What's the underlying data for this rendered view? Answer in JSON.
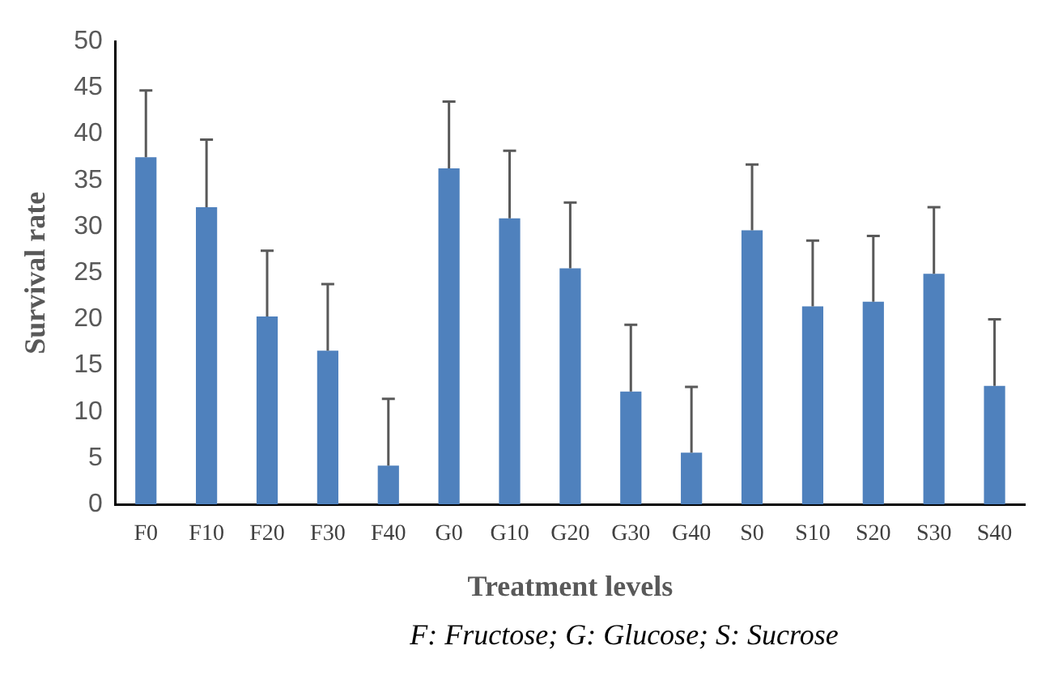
{
  "chart_data": {
    "type": "bar",
    "xlabel": "Treatment levels",
    "ylabel": "Survival rate",
    "categories": [
      "F0",
      "F10",
      "F20",
      "F30",
      "F40",
      "G0",
      "G10",
      "G20",
      "G30",
      "G40",
      "S0",
      "S10",
      "S20",
      "S30",
      "S40"
    ],
    "values": [
      37.5,
      32.1,
      20.3,
      16.6,
      4.2,
      36.3,
      30.9,
      25.5,
      12.2,
      5.6,
      29.6,
      21.4,
      21.9,
      24.9,
      12.8
    ],
    "errors": [
      [
        37.5,
        44.7
      ],
      [
        32.1,
        39.4
      ],
      [
        20.3,
        27.4
      ],
      [
        16.6,
        23.8
      ],
      [
        4.2,
        11.4
      ],
      [
        36.3,
        43.5
      ],
      [
        30.9,
        38.2
      ],
      [
        25.5,
        32.6
      ],
      [
        12.2,
        19.4
      ],
      [
        5.6,
        12.7
      ],
      [
        29.6,
        36.7
      ],
      [
        21.4,
        28.5
      ],
      [
        21.9,
        29.0
      ],
      [
        24.9,
        32.1
      ],
      [
        12.8,
        20.0
      ]
    ],
    "color": "#4f81bd",
    "ylim": [
      0,
      50
    ],
    "yticks": [
      0,
      5,
      10,
      15,
      20,
      25,
      30,
      35,
      40,
      45,
      50
    ],
    "grid": false,
    "legend": false,
    "annotations": [
      "F: Fructose; G: Glucose; S: Sucrose"
    ]
  }
}
